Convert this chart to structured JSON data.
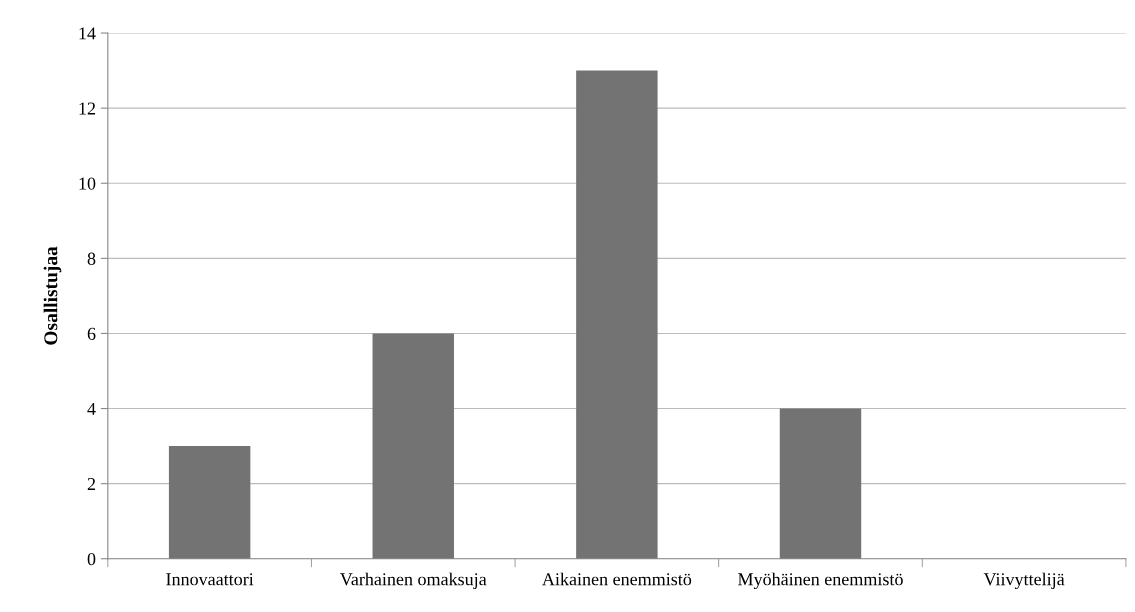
{
  "chart_data": {
    "type": "bar",
    "ylabel": "Osallistujaa",
    "categories": [
      "Innovaattori",
      "Varhainen omaksuja",
      "Aikainen enemmistö",
      "Myöhäinen enemmistö",
      "Viivyttelijä"
    ],
    "values": [
      3,
      6,
      13,
      4,
      0
    ],
    "color": "#737373",
    "ylim": [
      0,
      14
    ],
    "yticks": [
      0,
      2,
      4,
      6,
      8,
      10,
      12,
      14
    ],
    "grid": "y",
    "legend": false
  }
}
